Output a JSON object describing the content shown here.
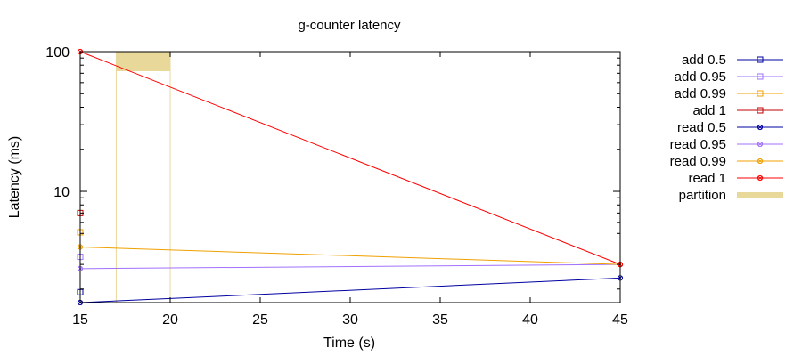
{
  "chart_data": {
    "type": "line",
    "title": "g-counter latency",
    "xlabel": "Time (s)",
    "ylabel": "Latency (ms)",
    "xlim": [
      15,
      45
    ],
    "ylim": [
      1.6,
      100
    ],
    "yscale": "log",
    "grid": false,
    "legend_position": "right",
    "x_ticks": [
      "15",
      "20",
      "25",
      "30",
      "35",
      "40",
      "45"
    ],
    "x_tick_values": [
      15,
      20,
      25,
      30,
      35,
      40,
      45
    ],
    "y_ticks": [
      "10",
      "100"
    ],
    "y_tick_values": [
      10,
      100
    ],
    "series": [
      {
        "name": "add 0.5",
        "color": "#0000a0",
        "marker": "square",
        "x": [
          15
        ],
        "y": [
          1.9
        ]
      },
      {
        "name": "add 0.95",
        "color": "#a070ff",
        "marker": "square",
        "x": [
          15
        ],
        "y": [
          3.4
        ]
      },
      {
        "name": "add 0.99",
        "color": "#f0a000",
        "marker": "square",
        "x": [
          15
        ],
        "y": [
          5.1
        ]
      },
      {
        "name": "add 1",
        "color": "#c00000",
        "marker": "square",
        "x": [
          15
        ],
        "y": [
          7.0
        ]
      },
      {
        "name": "read 0.5",
        "color": "#0000a0",
        "marker": "circle-x",
        "x": [
          15,
          45
        ],
        "y": [
          1.6,
          2.4
        ]
      },
      {
        "name": "read 0.95",
        "color": "#a070ff",
        "marker": "circle-x",
        "x": [
          15,
          45
        ],
        "y": [
          2.8,
          3.0
        ]
      },
      {
        "name": "read 0.99",
        "color": "#f0a000",
        "marker": "circle-x",
        "x": [
          15,
          45
        ],
        "y": [
          4.0,
          3.0
        ]
      },
      {
        "name": "read 1",
        "color": "#ff0000",
        "marker": "circle-x",
        "x": [
          15,
          45
        ],
        "y": [
          100,
          3.0
        ]
      }
    ],
    "partition": {
      "name": "partition",
      "color": "#e8d89a",
      "x_start": 17,
      "x_end": 20
    }
  }
}
